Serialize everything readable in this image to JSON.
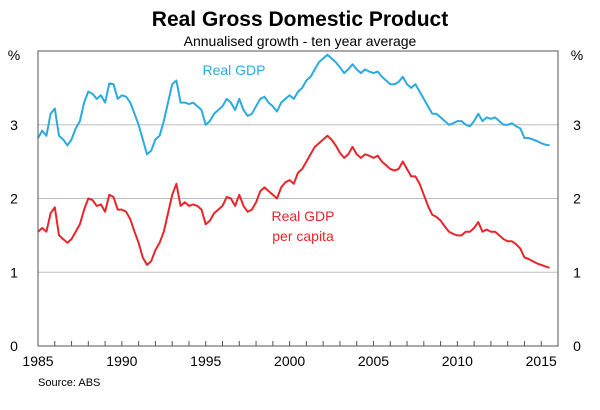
{
  "chart_data": {
    "type": "line",
    "title": "Real Gross Domestic Product",
    "subtitle": "Annualised growth - ten year average",
    "left_unit": "%",
    "right_unit": "%",
    "xlim": [
      1985,
      2016
    ],
    "ylim": [
      0,
      4
    ],
    "x_ticks": [
      "1985",
      "1990",
      "1995",
      "2000",
      "2005",
      "2010",
      "2015"
    ],
    "y_ticks": [
      "0",
      "1",
      "2",
      "3"
    ],
    "grid": true,
    "source": "Source: ABS",
    "series": [
      {
        "name": "Real GDP",
        "label_lines": [
          "Real GDP"
        ],
        "color": "#2aaae1",
        "points": [
          [
            1985.0,
            2.82
          ],
          [
            1985.25,
            2.92
          ],
          [
            1985.5,
            2.85
          ],
          [
            1985.75,
            3.15
          ],
          [
            1986.0,
            3.22
          ],
          [
            1986.25,
            2.85
          ],
          [
            1986.5,
            2.8
          ],
          [
            1986.75,
            2.72
          ],
          [
            1987.0,
            2.8
          ],
          [
            1987.25,
            2.95
          ],
          [
            1987.5,
            3.05
          ],
          [
            1987.75,
            3.3
          ],
          [
            1988.0,
            3.45
          ],
          [
            1988.25,
            3.42
          ],
          [
            1988.5,
            3.35
          ],
          [
            1988.75,
            3.4
          ],
          [
            1989.0,
            3.3
          ],
          [
            1989.25,
            3.56
          ],
          [
            1989.5,
            3.55
          ],
          [
            1989.75,
            3.35
          ],
          [
            1990.0,
            3.4
          ],
          [
            1990.25,
            3.38
          ],
          [
            1990.5,
            3.3
          ],
          [
            1990.75,
            3.15
          ],
          [
            1991.0,
            3.0
          ],
          [
            1991.25,
            2.8
          ],
          [
            1991.5,
            2.6
          ],
          [
            1991.75,
            2.65
          ],
          [
            1992.0,
            2.8
          ],
          [
            1992.25,
            2.85
          ],
          [
            1992.5,
            3.05
          ],
          [
            1992.75,
            3.3
          ],
          [
            1993.0,
            3.55
          ],
          [
            1993.25,
            3.6
          ],
          [
            1993.5,
            3.3
          ],
          [
            1993.75,
            3.3
          ],
          [
            1994.0,
            3.28
          ],
          [
            1994.25,
            3.3
          ],
          [
            1994.5,
            3.25
          ],
          [
            1994.75,
            3.2
          ],
          [
            1995.0,
            3.0
          ],
          [
            1995.25,
            3.05
          ],
          [
            1995.5,
            3.15
          ],
          [
            1995.75,
            3.2
          ],
          [
            1996.0,
            3.25
          ],
          [
            1996.25,
            3.35
          ],
          [
            1996.5,
            3.3
          ],
          [
            1996.75,
            3.2
          ],
          [
            1997.0,
            3.35
          ],
          [
            1997.25,
            3.2
          ],
          [
            1997.5,
            3.12
          ],
          [
            1997.75,
            3.15
          ],
          [
            1998.0,
            3.25
          ],
          [
            1998.25,
            3.35
          ],
          [
            1998.5,
            3.38
          ],
          [
            1998.75,
            3.3
          ],
          [
            1999.0,
            3.25
          ],
          [
            1999.25,
            3.18
          ],
          [
            1999.5,
            3.3
          ],
          [
            1999.75,
            3.35
          ],
          [
            2000.0,
            3.4
          ],
          [
            2000.25,
            3.35
          ],
          [
            2000.5,
            3.45
          ],
          [
            2000.75,
            3.5
          ],
          [
            2001.0,
            3.6
          ],
          [
            2001.25,
            3.65
          ],
          [
            2001.5,
            3.75
          ],
          [
            2001.75,
            3.85
          ],
          [
            2002.0,
            3.9
          ],
          [
            2002.25,
            3.95
          ],
          [
            2002.5,
            3.9
          ],
          [
            2002.75,
            3.85
          ],
          [
            2003.0,
            3.78
          ],
          [
            2003.25,
            3.7
          ],
          [
            2003.5,
            3.75
          ],
          [
            2003.75,
            3.82
          ],
          [
            2004.0,
            3.75
          ],
          [
            2004.25,
            3.7
          ],
          [
            2004.5,
            3.75
          ],
          [
            2004.75,
            3.72
          ],
          [
            2005.0,
            3.7
          ],
          [
            2005.25,
            3.72
          ],
          [
            2005.5,
            3.65
          ],
          [
            2005.75,
            3.6
          ],
          [
            2006.0,
            3.55
          ],
          [
            2006.25,
            3.55
          ],
          [
            2006.5,
            3.58
          ],
          [
            2006.75,
            3.65
          ],
          [
            2007.0,
            3.55
          ],
          [
            2007.25,
            3.5
          ],
          [
            2007.5,
            3.55
          ],
          [
            2007.75,
            3.45
          ],
          [
            2008.0,
            3.35
          ],
          [
            2008.25,
            3.25
          ],
          [
            2008.5,
            3.15
          ],
          [
            2008.75,
            3.15
          ],
          [
            2009.0,
            3.1
          ],
          [
            2009.25,
            3.05
          ],
          [
            2009.5,
            3.0
          ],
          [
            2009.75,
            3.02
          ],
          [
            2010.0,
            3.05
          ],
          [
            2010.25,
            3.05
          ],
          [
            2010.5,
            3.0
          ],
          [
            2010.75,
            2.98
          ],
          [
            2011.0,
            3.05
          ],
          [
            2011.25,
            3.15
          ],
          [
            2011.5,
            3.05
          ],
          [
            2011.75,
            3.1
          ],
          [
            2012.0,
            3.08
          ],
          [
            2012.25,
            3.1
          ],
          [
            2012.5,
            3.05
          ],
          [
            2012.75,
            3.0
          ],
          [
            2013.0,
            3.0
          ],
          [
            2013.25,
            3.02
          ],
          [
            2013.5,
            2.98
          ],
          [
            2013.75,
            2.95
          ],
          [
            2014.0,
            2.82
          ],
          [
            2014.25,
            2.82
          ],
          [
            2014.5,
            2.8
          ],
          [
            2014.75,
            2.78
          ],
          [
            2015.0,
            2.75
          ],
          [
            2015.25,
            2.73
          ],
          [
            2015.5,
            2.72
          ]
        ]
      },
      {
        "name": "Real GDP per capita",
        "label_lines": [
          "Real GDP",
          "per capita"
        ],
        "color": "#e8252a",
        "points": [
          [
            1985.0,
            1.55
          ],
          [
            1985.25,
            1.6
          ],
          [
            1985.5,
            1.55
          ],
          [
            1985.75,
            1.8
          ],
          [
            1986.0,
            1.88
          ],
          [
            1986.25,
            1.5
          ],
          [
            1986.5,
            1.45
          ],
          [
            1986.75,
            1.4
          ],
          [
            1987.0,
            1.45
          ],
          [
            1987.25,
            1.55
          ],
          [
            1987.5,
            1.65
          ],
          [
            1987.75,
            1.85
          ],
          [
            1988.0,
            2.0
          ],
          [
            1988.25,
            1.98
          ],
          [
            1988.5,
            1.9
          ],
          [
            1988.75,
            1.92
          ],
          [
            1989.0,
            1.82
          ],
          [
            1989.25,
            2.05
          ],
          [
            1989.5,
            2.02
          ],
          [
            1989.75,
            1.85
          ],
          [
            1990.0,
            1.85
          ],
          [
            1990.25,
            1.82
          ],
          [
            1990.5,
            1.72
          ],
          [
            1990.75,
            1.55
          ],
          [
            1991.0,
            1.4
          ],
          [
            1991.25,
            1.2
          ],
          [
            1991.5,
            1.1
          ],
          [
            1991.75,
            1.15
          ],
          [
            1992.0,
            1.3
          ],
          [
            1992.25,
            1.4
          ],
          [
            1992.5,
            1.55
          ],
          [
            1992.75,
            1.8
          ],
          [
            1993.0,
            2.05
          ],
          [
            1993.25,
            2.2
          ],
          [
            1993.5,
            1.9
          ],
          [
            1993.75,
            1.95
          ],
          [
            1994.0,
            1.9
          ],
          [
            1994.25,
            1.92
          ],
          [
            1994.5,
            1.9
          ],
          [
            1994.75,
            1.85
          ],
          [
            1995.0,
            1.65
          ],
          [
            1995.25,
            1.7
          ],
          [
            1995.5,
            1.8
          ],
          [
            1995.75,
            1.85
          ],
          [
            1996.0,
            1.9
          ],
          [
            1996.25,
            2.02
          ],
          [
            1996.5,
            2.0
          ],
          [
            1996.75,
            1.9
          ],
          [
            1997.0,
            2.05
          ],
          [
            1997.25,
            1.9
          ],
          [
            1997.5,
            1.82
          ],
          [
            1997.75,
            1.85
          ],
          [
            1998.0,
            1.95
          ],
          [
            1998.25,
            2.1
          ],
          [
            1998.5,
            2.15
          ],
          [
            1998.75,
            2.1
          ],
          [
            1999.0,
            2.05
          ],
          [
            1999.25,
            2.0
          ],
          [
            1999.5,
            2.15
          ],
          [
            1999.75,
            2.22
          ],
          [
            2000.0,
            2.25
          ],
          [
            2000.25,
            2.2
          ],
          [
            2000.5,
            2.35
          ],
          [
            2000.75,
            2.4
          ],
          [
            2001.0,
            2.5
          ],
          [
            2001.25,
            2.6
          ],
          [
            2001.5,
            2.7
          ],
          [
            2001.75,
            2.75
          ],
          [
            2002.0,
            2.8
          ],
          [
            2002.25,
            2.85
          ],
          [
            2002.5,
            2.8
          ],
          [
            2002.75,
            2.72
          ],
          [
            2003.0,
            2.62
          ],
          [
            2003.25,
            2.55
          ],
          [
            2003.5,
            2.6
          ],
          [
            2003.75,
            2.7
          ],
          [
            2004.0,
            2.6
          ],
          [
            2004.25,
            2.55
          ],
          [
            2004.5,
            2.6
          ],
          [
            2004.75,
            2.58
          ],
          [
            2005.0,
            2.55
          ],
          [
            2005.25,
            2.58
          ],
          [
            2005.5,
            2.5
          ],
          [
            2005.75,
            2.45
          ],
          [
            2006.0,
            2.4
          ],
          [
            2006.25,
            2.38
          ],
          [
            2006.5,
            2.4
          ],
          [
            2006.75,
            2.5
          ],
          [
            2007.0,
            2.4
          ],
          [
            2007.25,
            2.3
          ],
          [
            2007.5,
            2.3
          ],
          [
            2007.75,
            2.2
          ],
          [
            2008.0,
            2.05
          ],
          [
            2008.25,
            1.9
          ],
          [
            2008.5,
            1.78
          ],
          [
            2008.75,
            1.75
          ],
          [
            2009.0,
            1.7
          ],
          [
            2009.25,
            1.62
          ],
          [
            2009.5,
            1.55
          ],
          [
            2009.75,
            1.52
          ],
          [
            2010.0,
            1.5
          ],
          [
            2010.25,
            1.5
          ],
          [
            2010.5,
            1.55
          ],
          [
            2010.75,
            1.55
          ],
          [
            2011.0,
            1.6
          ],
          [
            2011.25,
            1.68
          ],
          [
            2011.5,
            1.55
          ],
          [
            2011.75,
            1.58
          ],
          [
            2012.0,
            1.55
          ],
          [
            2012.25,
            1.55
          ],
          [
            2012.5,
            1.5
          ],
          [
            2012.75,
            1.45
          ],
          [
            2013.0,
            1.42
          ],
          [
            2013.25,
            1.42
          ],
          [
            2013.5,
            1.38
          ],
          [
            2013.75,
            1.32
          ],
          [
            2014.0,
            1.2
          ],
          [
            2014.25,
            1.18
          ],
          [
            2014.5,
            1.15
          ],
          [
            2014.75,
            1.12
          ],
          [
            2015.0,
            1.1
          ],
          [
            2015.25,
            1.08
          ],
          [
            2015.5,
            1.06
          ]
        ]
      }
    ]
  }
}
